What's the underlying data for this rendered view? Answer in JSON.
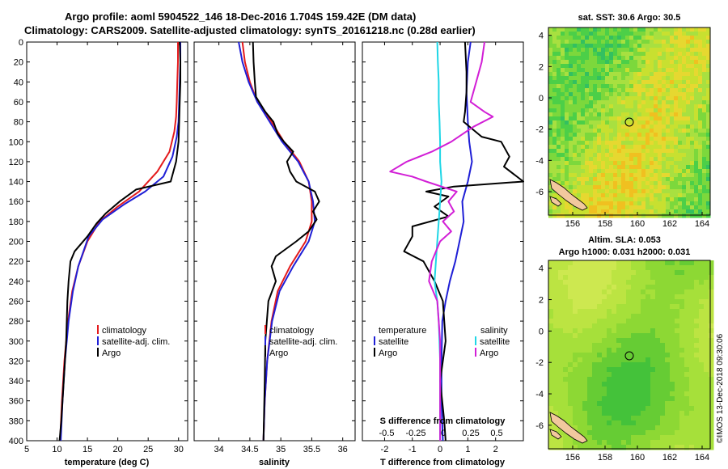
{
  "header": {
    "line1": "Argo profile: aoml 5904522_146 18-Dec-2016 1.704S 159.42E (DM data)",
    "line2": "Climatology: CARS2009. Satellite-adjusted climatology: synTS_20161218.nc (0.28d earlier)"
  },
  "colors": {
    "climatology": "#e41a1c",
    "satellite": "#1f1fd6",
    "argo": "#000000",
    "sat_temp": "#1fd6e6",
    "sat_sal_diff": "#d21fd6"
  },
  "chart_data": [
    {
      "id": "temperature",
      "type": "line",
      "xlabel": "temperature (deg C)",
      "xlim": [
        5,
        31.5
      ],
      "xticks": [
        5,
        10,
        15,
        20,
        25,
        30
      ],
      "ylim": [
        0,
        400
      ],
      "yticks": [
        0,
        20,
        40,
        60,
        80,
        100,
        120,
        140,
        160,
        180,
        200,
        220,
        240,
        260,
        280,
        300,
        320,
        340,
        360,
        380,
        400
      ],
      "legend": [
        "climatology",
        "satellite-adj. clim.",
        "Argo"
      ],
      "series": [
        {
          "name": "climatology",
          "color": "#e41a1c",
          "points": [
            [
              29.9,
              0
            ],
            [
              29.9,
              20
            ],
            [
              29.8,
              40
            ],
            [
              29.7,
              60
            ],
            [
              29.6,
              75
            ],
            [
              29.3,
              90
            ],
            [
              28.5,
              110
            ],
            [
              26.5,
              130
            ],
            [
              23.5,
              150
            ],
            [
              20,
              165
            ],
            [
              17,
              180
            ],
            [
              15,
              200
            ],
            [
              13.5,
              225
            ],
            [
              12.5,
              250
            ],
            [
              11.8,
              280
            ],
            [
              11.2,
              320
            ],
            [
              10.8,
              360
            ],
            [
              10.5,
              400
            ]
          ]
        },
        {
          "name": "satellite-adj. clim.",
          "color": "#1f1fd6",
          "points": [
            [
              30.3,
              0
            ],
            [
              30.3,
              20
            ],
            [
              30.2,
              40
            ],
            [
              30.1,
              60
            ],
            [
              30,
              80
            ],
            [
              29.7,
              95
            ],
            [
              29,
              115
            ],
            [
              27.5,
              135
            ],
            [
              24.5,
              150
            ],
            [
              21,
              163
            ],
            [
              17.5,
              178
            ],
            [
              15.2,
              195
            ],
            [
              13.5,
              225
            ],
            [
              12.6,
              250
            ],
            [
              11.9,
              280
            ],
            [
              11.3,
              320
            ],
            [
              10.9,
              360
            ],
            [
              10.6,
              400
            ]
          ]
        },
        {
          "name": "Argo",
          "color": "#000000",
          "points": [
            [
              30.2,
              0
            ],
            [
              30.3,
              20
            ],
            [
              30.3,
              40
            ],
            [
              30.2,
              60
            ],
            [
              30.1,
              80
            ],
            [
              30,
              100
            ],
            [
              29.6,
              120
            ],
            [
              28.7,
              140
            ],
            [
              23,
              148
            ],
            [
              20.3,
              160
            ],
            [
              18,
              172
            ],
            [
              16.5,
              182
            ],
            [
              15,
              195
            ],
            [
              12.9,
              210
            ],
            [
              12.2,
              220
            ],
            [
              11.9,
              240
            ],
            [
              11.7,
              260
            ],
            [
              11.5,
              300
            ],
            [
              11.1,
              340
            ],
            [
              10.7,
              380
            ],
            [
              10.4,
              400
            ]
          ]
        }
      ]
    },
    {
      "id": "salinity",
      "type": "line",
      "xlabel": "salinity",
      "xlim": [
        33.6,
        36.2
      ],
      "xticks": [
        34,
        34.5,
        35,
        35.5,
        36
      ],
      "ylim": [
        0,
        400
      ],
      "legend": [
        "climatology",
        "satellite-adj. clim.",
        "Argo"
      ],
      "series": [
        {
          "name": "climatology",
          "color": "#e41a1c",
          "points": [
            [
              34.38,
              0
            ],
            [
              34.42,
              20
            ],
            [
              34.5,
              40
            ],
            [
              34.62,
              60
            ],
            [
              34.85,
              80
            ],
            [
              35.05,
              100
            ],
            [
              35.3,
              120
            ],
            [
              35.45,
              140
            ],
            [
              35.5,
              160
            ],
            [
              35.5,
              180
            ],
            [
              35.4,
              200
            ],
            [
              35.15,
              225
            ],
            [
              34.95,
              250
            ],
            [
              34.85,
              280
            ],
            [
              34.78,
              320
            ],
            [
              34.74,
              360
            ],
            [
              34.72,
              400
            ]
          ]
        },
        {
          "name": "satellite-adj. clim.",
          "color": "#1f1fd6",
          "points": [
            [
              34.32,
              0
            ],
            [
              34.38,
              20
            ],
            [
              34.48,
              40
            ],
            [
              34.62,
              60
            ],
            [
              34.82,
              80
            ],
            [
              35.02,
              100
            ],
            [
              35.28,
              120
            ],
            [
              35.45,
              140
            ],
            [
              35.52,
              160
            ],
            [
              35.55,
              180
            ],
            [
              35.45,
              200
            ],
            [
              35.2,
              225
            ],
            [
              34.98,
              250
            ],
            [
              34.86,
              280
            ],
            [
              34.78,
              320
            ],
            [
              34.74,
              360
            ],
            [
              34.72,
              400
            ]
          ]
        },
        {
          "name": "Argo",
          "color": "#000000",
          "points": [
            [
              34.55,
              0
            ],
            [
              34.56,
              20
            ],
            [
              34.58,
              40
            ],
            [
              34.6,
              55
            ],
            [
              34.75,
              70
            ],
            [
              34.88,
              80
            ],
            [
              34.95,
              92
            ],
            [
              35.05,
              100
            ],
            [
              35.2,
              110
            ],
            [
              35.1,
              120
            ],
            [
              35.15,
              130
            ],
            [
              35.25,
              140
            ],
            [
              35.55,
              150
            ],
            [
              35.62,
              160
            ],
            [
              35.52,
              170
            ],
            [
              35.58,
              178
            ],
            [
              35.45,
              190
            ],
            [
              35.25,
              200
            ],
            [
              34.92,
              215
            ],
            [
              34.85,
              225
            ],
            [
              34.92,
              240
            ],
            [
              34.8,
              260
            ],
            [
              34.75,
              300
            ],
            [
              34.74,
              340
            ],
            [
              34.73,
              370
            ],
            [
              34.72,
              400
            ]
          ]
        }
      ]
    },
    {
      "id": "difference",
      "type": "line",
      "xlabel": "T difference from climatology",
      "xlabel_top": "S difference from climatology",
      "xlim": [
        -2.8,
        3
      ],
      "xticks": [
        -2,
        -1,
        0,
        1,
        2
      ],
      "xticks_top": [
        "-0.5",
        "-0.25",
        "0",
        "0.25",
        "0.5"
      ],
      "ylim": [
        0,
        400
      ],
      "legend_left": {
        "title": "temperature",
        "items": [
          "satellite",
          "Argo"
        ]
      },
      "legend_right": {
        "title": "salinity",
        "items": [
          "satellite",
          "Argo"
        ]
      },
      "series": [
        {
          "name": "temperature satellite",
          "color": "#1f1fd6",
          "points": [
            [
              1.1,
              0
            ],
            [
              1.0,
              20
            ],
            [
              0.95,
              50
            ],
            [
              1.0,
              80
            ],
            [
              1.05,
              100
            ],
            [
              1.15,
              120
            ],
            [
              1.0,
              140
            ],
            [
              0.8,
              160
            ],
            [
              0.85,
              180
            ],
            [
              0.7,
              200
            ],
            [
              0.55,
              220
            ],
            [
              0.35,
              240
            ],
            [
              0.2,
              260
            ],
            [
              0.08,
              280
            ],
            [
              0.05,
              320
            ],
            [
              0.05,
              360
            ],
            [
              0.1,
              400
            ]
          ]
        },
        {
          "name": "temperature Argo",
          "color": "#000000",
          "points": [
            [
              0.9,
              0
            ],
            [
              0.95,
              30
            ],
            [
              0.95,
              50
            ],
            [
              0.9,
              70
            ],
            [
              0.85,
              80
            ],
            [
              1.5,
              95
            ],
            [
              2.2,
              100
            ],
            [
              2.5,
              115
            ],
            [
              2.3,
              125
            ],
            [
              3,
              140
            ],
            [
              0.5,
              145
            ],
            [
              -0.5,
              150
            ],
            [
              0.3,
              155
            ],
            [
              -0.2,
              165
            ],
            [
              0.3,
              175
            ],
            [
              -1.0,
              185
            ],
            [
              -1.0,
              195
            ],
            [
              -1.3,
              210
            ],
            [
              -0.6,
              220
            ],
            [
              -0.2,
              240
            ],
            [
              0.1,
              260
            ],
            [
              0.2,
              300
            ],
            [
              0.0,
              340
            ],
            [
              0.15,
              380
            ],
            [
              0.2,
              400
            ]
          ]
        },
        {
          "name": "salinity satellite",
          "color": "#1fd6e6",
          "points": [
            [
              -0.1,
              0
            ],
            [
              -0.08,
              20
            ],
            [
              -0.05,
              40
            ],
            [
              -0.05,
              60
            ],
            [
              -0.02,
              80
            ],
            [
              0,
              100
            ],
            [
              0,
              120
            ],
            [
              0.05,
              140
            ],
            [
              0.0,
              160
            ],
            [
              -0.05,
              180
            ],
            [
              -0.1,
              200
            ],
            [
              -0.15,
              220
            ],
            [
              -0.2,
              240
            ],
            [
              -0.1,
              260
            ],
            [
              -0.05,
              280
            ],
            [
              0,
              320
            ],
            [
              0,
              360
            ],
            [
              0,
              400
            ]
          ]
        },
        {
          "name": "salinity Argo",
          "color": "#d21fd6",
          "points": [
            [
              1.6,
              0
            ],
            [
              1.5,
              20
            ],
            [
              1.3,
              40
            ],
            [
              1.1,
              60
            ],
            [
              1.6,
              70
            ],
            [
              1.9,
              75
            ],
            [
              1.2,
              85
            ],
            [
              0.4,
              100
            ],
            [
              -0.3,
              110
            ],
            [
              -1.2,
              120
            ],
            [
              -1.8,
              130
            ],
            [
              -1.0,
              135
            ],
            [
              -0.5,
              140
            ],
            [
              0.6,
              150
            ],
            [
              0.3,
              160
            ],
            [
              0.5,
              170
            ],
            [
              0.1,
              180
            ],
            [
              0.4,
              190
            ],
            [
              0.0,
              200
            ],
            [
              -0.3,
              220
            ],
            [
              -0.4,
              240
            ],
            [
              -0.1,
              260
            ],
            [
              0.0,
              300
            ],
            [
              0.0,
              400
            ]
          ]
        }
      ]
    }
  ],
  "maps": [
    {
      "id": "sst-map",
      "title": "sat. SST: 30.6 Argo: 30.5",
      "xticks": [
        "156",
        "158",
        "160",
        "162",
        "164"
      ],
      "yticks": [
        "4",
        "2",
        "0",
        "-2",
        "-4",
        "-6"
      ],
      "argo_lon": 159.42,
      "argo_lat": -1.704
    },
    {
      "id": "sla-map",
      "title_line1": "Altim. SLA: 0.053",
      "title_line2": "Argo h1000: 0.031 h2000: 0.031",
      "xticks": [
        "156",
        "158",
        "160",
        "162",
        "164"
      ],
      "yticks": [
        "4",
        "2",
        "0",
        "-2",
        "-4",
        "-6"
      ],
      "argo_lon": 159.42,
      "argo_lat": -1.704
    }
  ],
  "credit": "©IMOS 13-Dec-2018 09:30:06"
}
